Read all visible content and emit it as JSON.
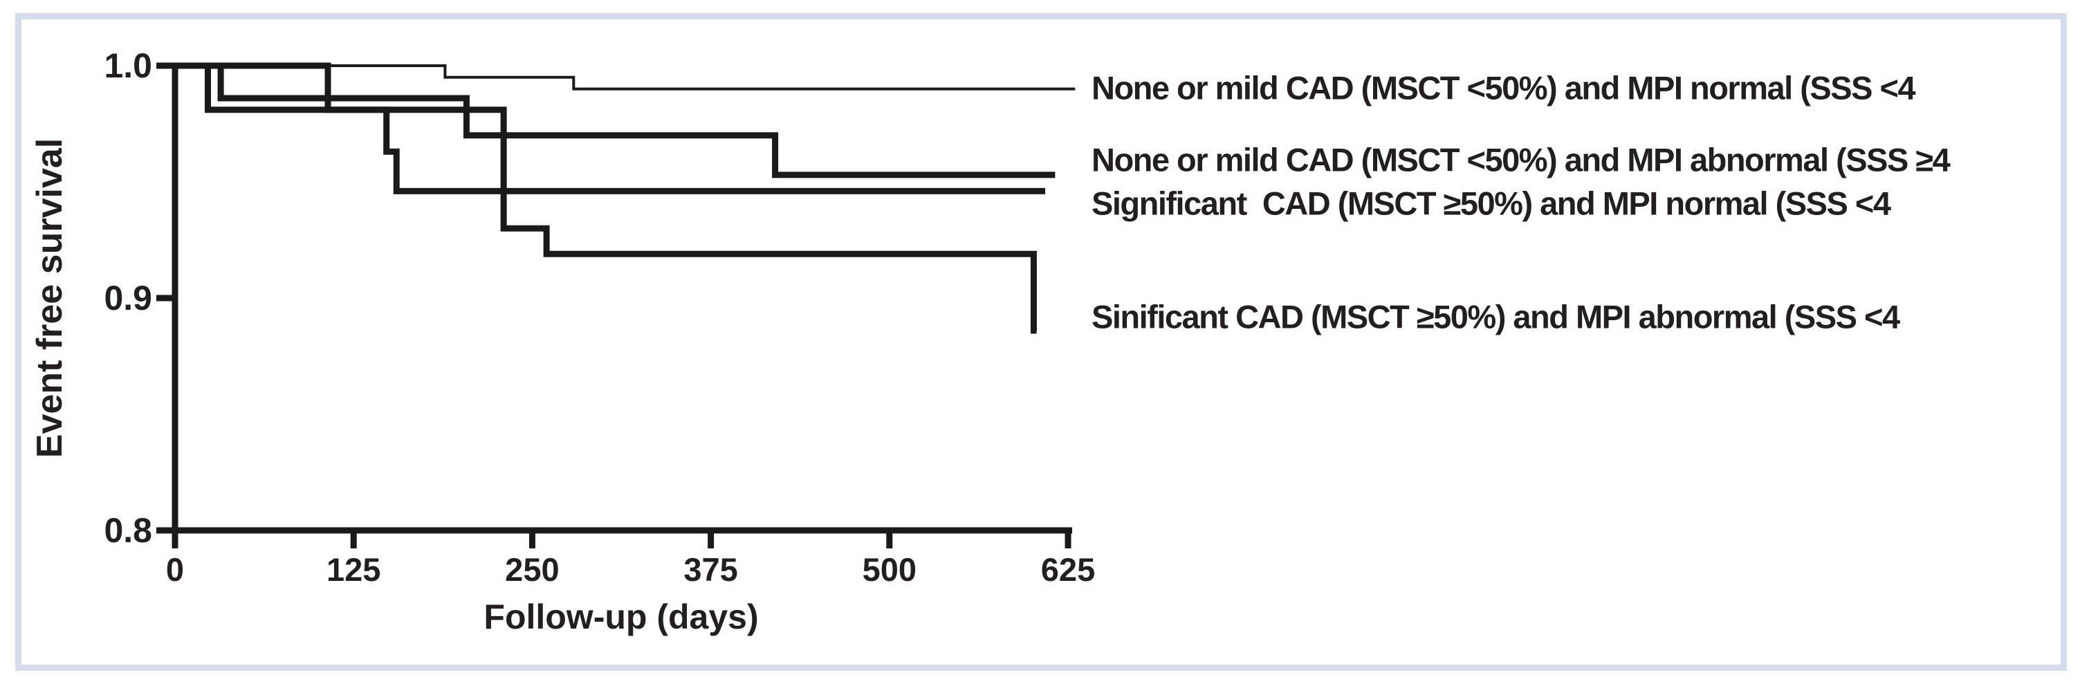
{
  "colors": {
    "line": "#1a1a1a",
    "text": "#231f20",
    "frame": "#d6dcec",
    "background": "#ffffff"
  },
  "figure": {
    "y_axis": {
      "title": "Event free survival",
      "tick_labels": [
        "1.0",
        "0.9",
        "0.8"
      ]
    },
    "x_axis": {
      "title": "Follow-up (days)",
      "tick_labels": [
        "0",
        "125",
        "250",
        "375",
        "500",
        "625"
      ]
    }
  },
  "legend": {
    "labels": [
      "None or mild CAD (MSCT <50%) and MPI normal (SSS <4",
      "None or mild CAD (MSCT <50%) and MPI abnormal (SSS ≥4",
      "Significant  CAD (MSCT ≥50%) and MPI normal (SSS <4",
      "Sinificant CAD (MSCT ≥50%) and MPI abnormal (SSS <4"
    ]
  },
  "chart_data": {
    "type": "line",
    "subtype": "kaplan-meier-step",
    "title": "",
    "xlabel": "Follow-up (days)",
    "ylabel": "Event free survival",
    "xlim": [
      0,
      625
    ],
    "ylim": [
      0.8,
      1.0
    ],
    "x_ticks": [
      0,
      125,
      250,
      375,
      500,
      625
    ],
    "y_ticks": [
      1.0,
      0.9,
      0.8
    ],
    "grid": false,
    "legend_position": "right-of-curve-ends",
    "series": [
      {
        "name": "None or mild CAD (MSCT <50%) and MPI normal (SSS <4",
        "style": "thin",
        "steps": [
          [
            0,
            1.0
          ],
          [
            189,
            0.995
          ],
          [
            279,
            0.99
          ],
          [
            630,
            0.99
          ]
        ]
      },
      {
        "name": "None or mild CAD (MSCT <50%) and MPI abnormal (SSS ≥4",
        "style": "thick",
        "steps": [
          [
            0,
            1.0
          ],
          [
            32,
            0.986
          ],
          [
            204,
            0.97
          ],
          [
            420,
            0.953
          ],
          [
            616,
            0.953
          ]
        ]
      },
      {
        "name": "Significant  CAD (MSCT ≥50%) and MPI normal (SSS <4",
        "style": "thick",
        "steps": [
          [
            0,
            1.0
          ],
          [
            23,
            0.981
          ],
          [
            148,
            0.963
          ],
          [
            155,
            0.946
          ],
          [
            609,
            0.946
          ]
        ]
      },
      {
        "name": "Sinificant CAD (MSCT ≥50%) and MPI abnormal (SSS <4",
        "style": "thick",
        "steps": [
          [
            0,
            1.0
          ],
          [
            107,
            0.981
          ],
          [
            230,
            0.93
          ],
          [
            260,
            0.919
          ],
          [
            601,
            0.886
          ],
          [
            603,
            0.886
          ]
        ]
      }
    ]
  }
}
